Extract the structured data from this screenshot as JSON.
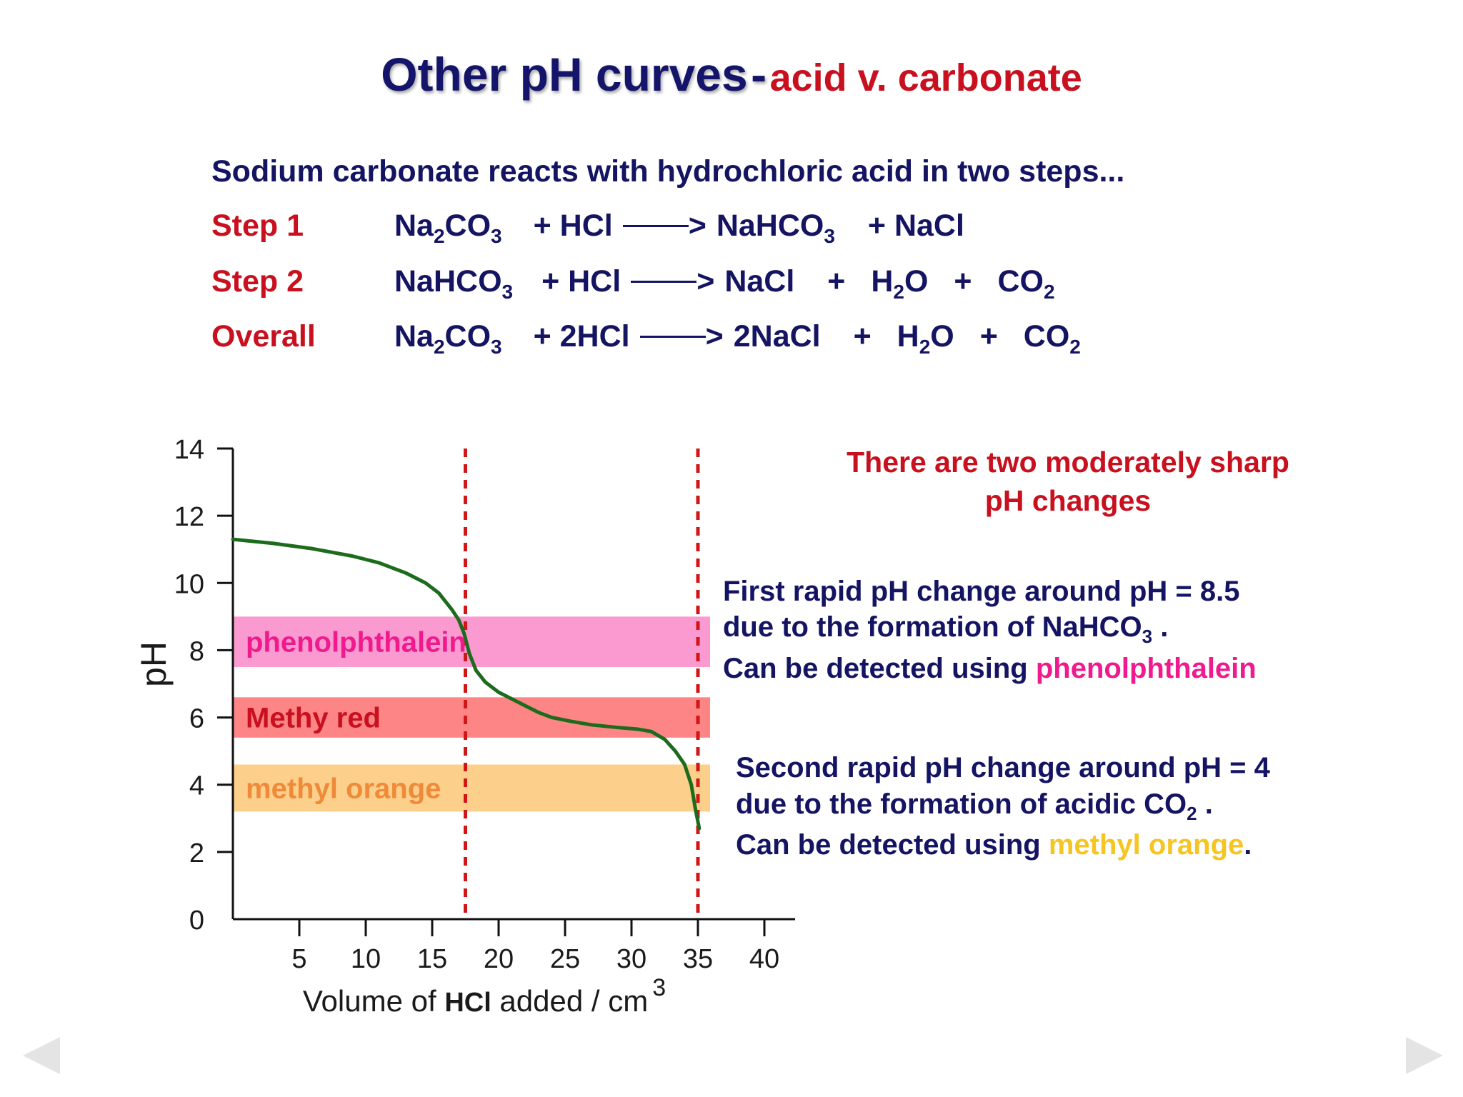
{
  "title": {
    "main": "Other pH curves",
    "dash": "-",
    "sub": "acid v. carbonate"
  },
  "intro": "Sodium carbonate reacts with hydrochloric acid in two steps...",
  "steps": [
    {
      "label": "Step 1",
      "parts": [
        "Na",
        "2",
        "CO",
        "3",
        "+ HCl",
        ">",
        "NaHCO",
        "3",
        "+ NaCl"
      ]
    },
    {
      "label": "Step 2",
      "parts": [
        "NaHCO",
        "3",
        "+ HCl",
        ">",
        "NaCl",
        "+",
        "H",
        "2",
        "O",
        "+",
        "CO",
        "2"
      ]
    },
    {
      "label": "Overall",
      "parts": [
        "Na",
        "2",
        "CO",
        "3",
        "+ 2HCl",
        ">",
        "2NaCl",
        "+",
        "H",
        "2",
        "O",
        "+",
        "CO",
        "2"
      ]
    }
  ],
  "notes": {
    "headline_line1": "There are two moderately sharp",
    "headline_line2": "pH changes",
    "first_line1": "First rapid pH change around pH = 8.5",
    "first_line2a": "due to the formation of NaHCO",
    "first_line2sub": "3",
    "first_line2b": " .",
    "first_line3a": "Can be detected using ",
    "first_line3b": "phenolphthalein",
    "second_line1": "Second rapid pH change around pH = 4",
    "second_line2a": "due to the formation of acidic CO",
    "second_line2sub": "2",
    "second_line2b": " .",
    "second_line3a": "Can be detected using ",
    "second_line3b": "methyl orange",
    "second_line3c": "."
  },
  "colors": {
    "curve": "#1d6b1d",
    "dashed_lines": "#d01717",
    "phenolphthalein_band": "#fb9ad0",
    "methyl_red_band": "#fe8585",
    "methyl_orange_band": "#fcd08a",
    "phenolphthalein_text": "#ef1a8d",
    "methyl_red_text": "#c8101f",
    "methyl_orange_text": "#ef8a3a"
  },
  "chart_data": {
    "type": "line",
    "xlabel_prefix": "Volume of ",
    "xlabel_hcl": "HCl",
    "xlabel_suffix": " added / cm",
    "xlabel_sup": "3",
    "ylabel": "pH",
    "xlim": [
      0,
      42
    ],
    "ylim": [
      0,
      14
    ],
    "x_ticks": [
      5,
      10,
      15,
      20,
      25,
      30,
      35,
      40
    ],
    "y_ticks": [
      0,
      2,
      4,
      6,
      8,
      10,
      12,
      14
    ],
    "series": [
      {
        "x": [
          0,
          3,
          6,
          9,
          11,
          13,
          14.5,
          15.5,
          16.5,
          17,
          17.4,
          17.8,
          18.3,
          19,
          20,
          21,
          22,
          23,
          24,
          25.5,
          27,
          29,
          30.5,
          31.5,
          32.5,
          33.3,
          34,
          34.5,
          34.8,
          35.1
        ],
        "y": [
          11.3,
          11.18,
          11.02,
          10.8,
          10.6,
          10.3,
          10.0,
          9.7,
          9.2,
          8.9,
          8.5,
          7.9,
          7.4,
          7.05,
          6.75,
          6.55,
          6.35,
          6.15,
          6.0,
          5.88,
          5.78,
          5.7,
          5.65,
          5.58,
          5.35,
          5.0,
          4.6,
          4.0,
          3.3,
          2.7
        ]
      }
    ],
    "vertical_dashed_lines_x": [
      17.5,
      35
    ],
    "indicator_bands": [
      {
        "label": "phenolphthalein",
        "ymin": 7.5,
        "ymax": 9.0
      },
      {
        "label": "Methy red",
        "ymin": 5.4,
        "ymax": 6.6
      },
      {
        "label": "methyl orange",
        "ymin": 3.2,
        "ymax": 4.6
      }
    ]
  }
}
